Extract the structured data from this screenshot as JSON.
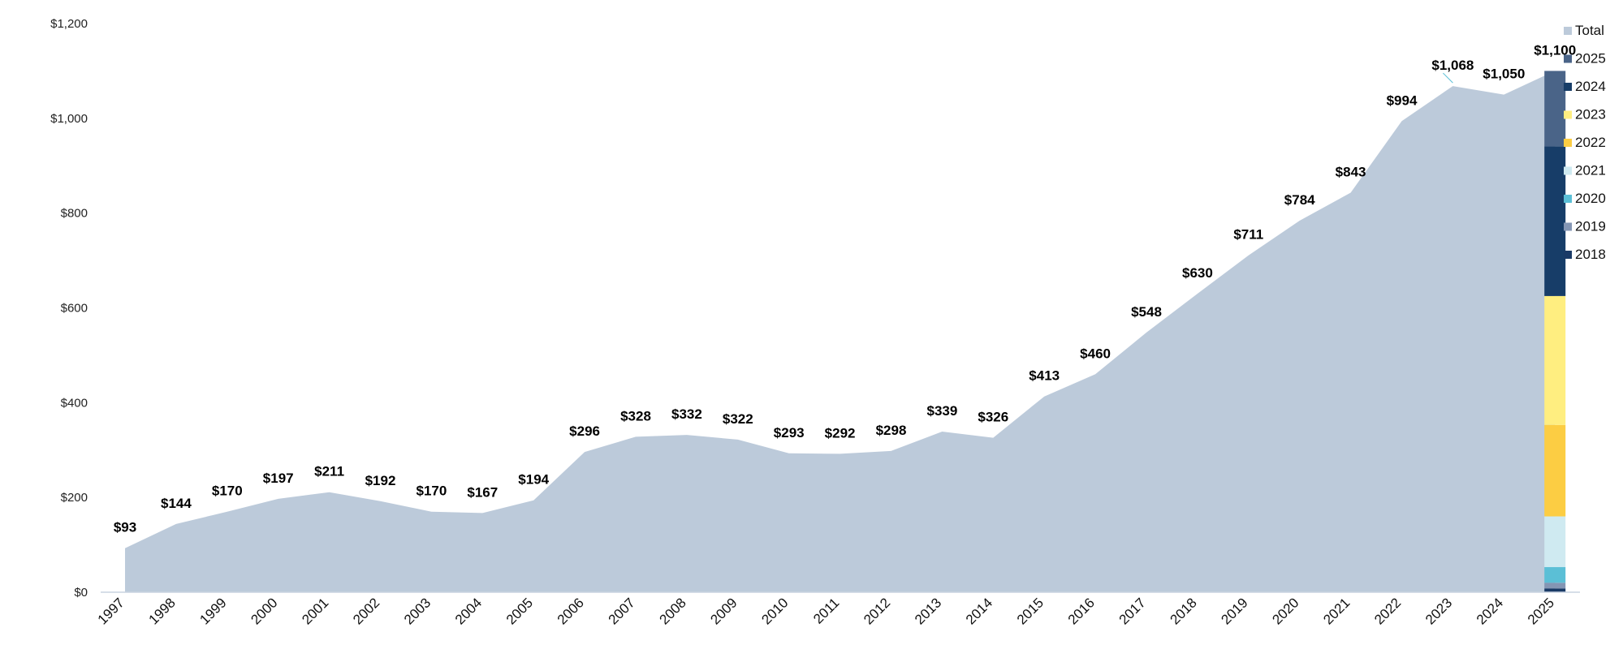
{
  "chart_data": {
    "type": "area",
    "title": "",
    "xlabel": "",
    "ylabel": "",
    "ylim": [
      0,
      1200
    ],
    "yticks": [
      0,
      200,
      400,
      600,
      800,
      1000,
      1200
    ],
    "ytick_labels": [
      "$0",
      "$200",
      "$400",
      "$600",
      "$800",
      "$1,000",
      "$1,200"
    ],
    "grid": false,
    "legend_position": "top-right",
    "x": [
      "1997",
      "1998",
      "1999",
      "2000",
      "2001",
      "2002",
      "2003",
      "2004",
      "2005",
      "2006",
      "2007",
      "2008",
      "2009",
      "2010",
      "2011",
      "2012",
      "2013",
      "2014",
      "2015",
      "2016",
      "2017",
      "2018",
      "2019",
      "2020",
      "2021",
      "2022",
      "2023",
      "2024",
      "2025"
    ],
    "series": [
      {
        "name": "Total",
        "color": "#bccada",
        "values": [
          93,
          144,
          170,
          197,
          211,
          192,
          170,
          167,
          194,
          296,
          328,
          332,
          322,
          293,
          292,
          298,
          339,
          326,
          413,
          460,
          548,
          630,
          711,
          784,
          843,
          994,
          1068,
          1050,
          1100
        ],
        "labels": [
          "$93",
          "$144",
          "$170",
          "$197",
          "$211",
          "$192",
          "$170",
          "$167",
          "$194",
          "$296",
          "$328",
          "$332",
          "$322",
          "$293",
          "$292",
          "$298",
          "$339",
          "$326",
          "$413",
          "$460",
          "$548",
          "$630",
          "$711",
          "$784",
          "$843",
          "$994",
          "$1,068",
          "$1,050",
          "$1,100"
        ]
      }
    ],
    "stacked_bar": {
      "x": "2025",
      "segments": [
        {
          "name": "2018",
          "color": "#1a3a66",
          "value": 8
        },
        {
          "name": "2019",
          "color": "#8496b4",
          "value": 12
        },
        {
          "name": "2020",
          "color": "#5bbfd6",
          "value": 33
        },
        {
          "name": "2021",
          "color": "#cfeaf1",
          "value": 107
        },
        {
          "name": "2022",
          "color": "#fccd43",
          "value": 193
        },
        {
          "name": "2023",
          "color": "#ffee80",
          "value": 272
        },
        {
          "name": "2024",
          "color": "#173d68",
          "value": 316
        },
        {
          "name": "2025",
          "color": "#4a6488",
          "value": 159
        }
      ]
    },
    "legend": [
      {
        "name": "Total",
        "color": "#bccada"
      },
      {
        "name": "2025",
        "color": "#4a6488"
      },
      {
        "name": "2024",
        "color": "#173d68"
      },
      {
        "name": "2023",
        "color": "#ffee80"
      },
      {
        "name": "2022",
        "color": "#fccd43"
      },
      {
        "name": "2021",
        "color": "#cfeaf1"
      },
      {
        "name": "2020",
        "color": "#5bbfd6"
      },
      {
        "name": "2019",
        "color": "#8496b4"
      },
      {
        "name": "2018",
        "color": "#1a3a66"
      }
    ]
  }
}
